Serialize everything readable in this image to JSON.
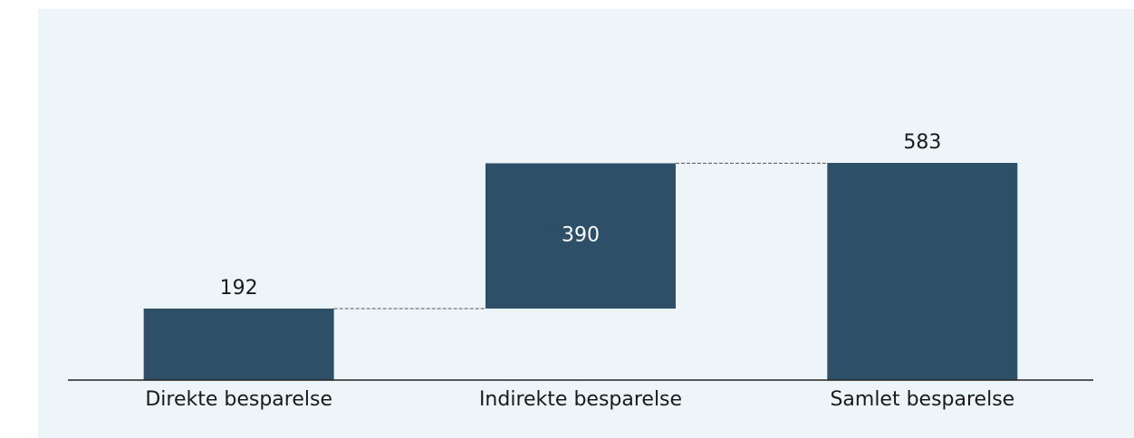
{
  "chart_data": {
    "type": "waterfall",
    "categories": [
      "Direkte besparelse",
      "Indirekte besparelse",
      "Samlet besparelse"
    ],
    "values": [
      192,
      390,
      583
    ],
    "measure": [
      "relative",
      "relative",
      "total"
    ],
    "color": "#2d5068"
  }
}
